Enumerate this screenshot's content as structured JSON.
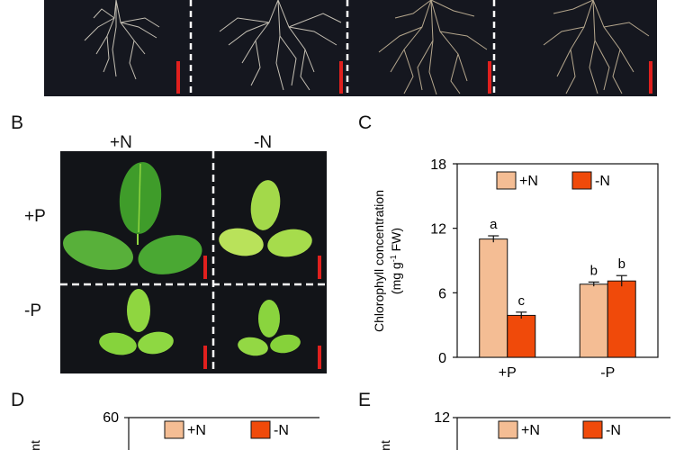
{
  "figure": {
    "panels": {
      "b": "B",
      "c": "C",
      "d": "D",
      "e": "E"
    },
    "b": {
      "col_labels": [
        "+N",
        "-N"
      ],
      "row_labels": [
        "+P",
        "-P"
      ]
    },
    "colors": {
      "plus_n": "#f4bd94",
      "minus_n": "#f04a0a",
      "scale_bar": "#e0201e",
      "leaf_light": "#8fd640",
      "leaf_dark": "#3a9a28",
      "photo_bg": "#121418"
    }
  },
  "chart_data": [
    {
      "type": "bar",
      "categories": [
        "+P",
        "-P"
      ],
      "series": [
        {
          "name": "+N",
          "values": [
            11.0,
            6.8
          ]
        },
        {
          "name": "-N",
          "values": [
            3.9,
            7.1
          ]
        }
      ],
      "errors": [
        [
          0.3,
          0.3
        ],
        [
          0.2,
          0.5
        ]
      ],
      "significance": [
        [
          "a",
          "c"
        ],
        [
          "b",
          "b"
        ]
      ],
      "ylabel_line1": "Chlorophyll concentration",
      "ylabel_line2_pre": "(mg g",
      "ylabel_line2_sup": "-1",
      "ylabel_line2_post": " FW)",
      "yticks": [
        "0",
        "6",
        "12",
        "18"
      ],
      "ylim": [
        0,
        18
      ],
      "legend": [
        "+N",
        "-N"
      ],
      "legend_placement": "top"
    },
    {
      "type": "bar",
      "yticks_visible": [
        "60"
      ],
      "ylabel_fragment": "nt",
      "legend": [
        "+N",
        "-N"
      ]
    },
    {
      "type": "bar",
      "yticks_visible": [
        "12"
      ],
      "ylabel_fragment": "nt",
      "legend": [
        "+N",
        "-N"
      ]
    }
  ]
}
